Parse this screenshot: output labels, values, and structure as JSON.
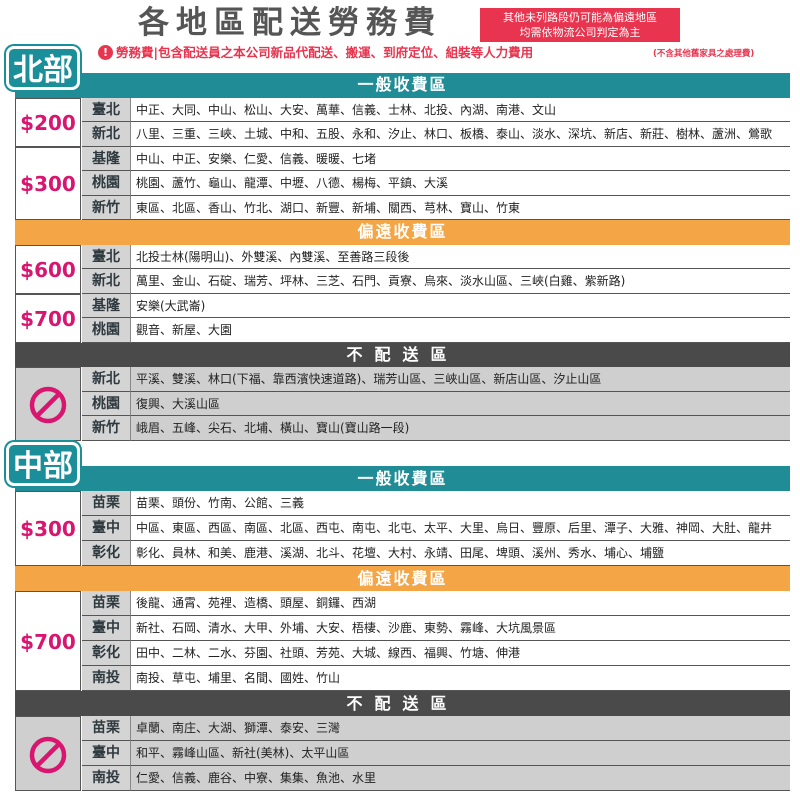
{
  "header": {
    "title": "各地區配送勞務費",
    "note": [
      "其他未列路段仍可能為偏遠地區",
      "均需依物流公司判定為主"
    ],
    "subtitle": "勞務費|包含配送員之本公司新品代配送、搬運、到府定位、組裝等人力費用",
    "subtitle_note": "(不含其他舊家具之處理費)"
  },
  "sections": [
    {
      "name": "北部",
      "zones": [
        {
          "name": "一般收費區",
          "color": "#1f8c96",
          "groups": [
            {
              "price": "$200",
              "rows": [
                {
                  "region": "臺北",
                  "areas": "中正、大同、中山、松山、大安、萬華、信義、士林、北投、內湖、南港、文山"
                },
                {
                  "region": "新北",
                  "areas": "八里、三重、三峽、土城、中和、五股、永和、汐止、林口、板橋、泰山、淡水、深坑、新店、新莊、樹林、蘆洲、鶯歌"
                }
              ]
            },
            {
              "price": "$300",
              "rows": [
                {
                  "region": "基隆",
                  "areas": "中山、中正、安樂、仁愛、信義、暖暖、七堵"
                },
                {
                  "region": "桃園",
                  "areas": "桃園、蘆竹、龜山、龍潭、中壢、八德、楊梅、平鎮、大溪"
                },
                {
                  "region": "新竹",
                  "areas": "東區、北區、香山、竹北、湖口、新豐、新埔、關西、芎林、寶山、竹東"
                }
              ]
            }
          ]
        },
        {
          "name": "偏遠收費區",
          "color": "#f4a545",
          "groups": [
            {
              "price": "$600",
              "rows": [
                {
                  "region": "臺北",
                  "areas": "北投士林(陽明山)、外雙溪、內雙溪、至善路三段後"
                },
                {
                  "region": "新北",
                  "areas": "萬里、金山、石碇、瑞芳、坪林、三芝、石門、貢寮、烏來、淡水山區、三峽(白雞、紫新路)"
                }
              ]
            },
            {
              "price": "$700",
              "rows": [
                {
                  "region": "基隆",
                  "areas": "安樂(大武崙)"
                },
                {
                  "region": "桃園",
                  "areas": "觀音、新屋、大園"
                }
              ]
            }
          ]
        },
        {
          "name": "不配送區",
          "color": "#4a4a4a",
          "groups": [
            {
              "rows": [
                {
                  "region": "新北",
                  "areas": "平溪、雙溪、林口(下福、靠西濱快速道路)、瑞芳山區、三峽山區、新店山區、汐止山區"
                },
                {
                  "region": "桃園",
                  "areas": "復興、大溪山區"
                },
                {
                  "region": "新竹",
                  "areas": "峨眉、五峰、尖石、北埔、橫山、寶山(寶山路一段)"
                }
              ]
            }
          ]
        }
      ]
    },
    {
      "name": "中部",
      "zones": [
        {
          "name": "一般收費區",
          "color": "#1f8c96",
          "groups": [
            {
              "price": "$300",
              "rows": [
                {
                  "region": "苗栗",
                  "areas": "苗栗、頭份、竹南、公館、三義"
                },
                {
                  "region": "臺中",
                  "areas": "中區、東區、西區、南區、北區、西屯、南屯、北屯、太平、大里、烏日、豐原、后里、潭子、大雅、神岡、大肚、龍井"
                },
                {
                  "region": "彰化",
                  "areas": "彰化、員林、和美、鹿港、溪湖、北斗、花壇、大村、永靖、田尾、埤頭、溪州、秀水、埔心、埔鹽"
                }
              ]
            }
          ]
        },
        {
          "name": "偏遠收費區",
          "color": "#f4a545",
          "groups": [
            {
              "price": "$700",
              "rows": [
                {
                  "region": "苗栗",
                  "areas": "後龍、通霄、苑裡、造橋、頭屋、銅鑼、西湖"
                },
                {
                  "region": "臺中",
                  "areas": "新社、石岡、清水、大甲、外埔、大安、梧棲、沙鹿、東勢、霧峰、大坑風景區"
                },
                {
                  "region": "彰化",
                  "areas": "田中、二林、二水、芬園、社頭、芳苑、大城、線西、福興、竹塘、伸港"
                },
                {
                  "region": "南投",
                  "areas": "南投、草屯、埔里、名間、國姓、竹山"
                }
              ]
            }
          ]
        },
        {
          "name": "不配送區",
          "color": "#4a4a4a",
          "groups": [
            {
              "rows": [
                {
                  "region": "苗栗",
                  "areas": "卓蘭、南庄、大湖、獅潭、泰安、三灣"
                },
                {
                  "region": "臺中",
                  "areas": "和平、霧峰山區、新社(美林)、太平山區"
                },
                {
                  "region": "南投",
                  "areas": "仁愛、信義、鹿谷、中寮、集集、魚池、水里"
                }
              ]
            }
          ]
        }
      ]
    }
  ]
}
